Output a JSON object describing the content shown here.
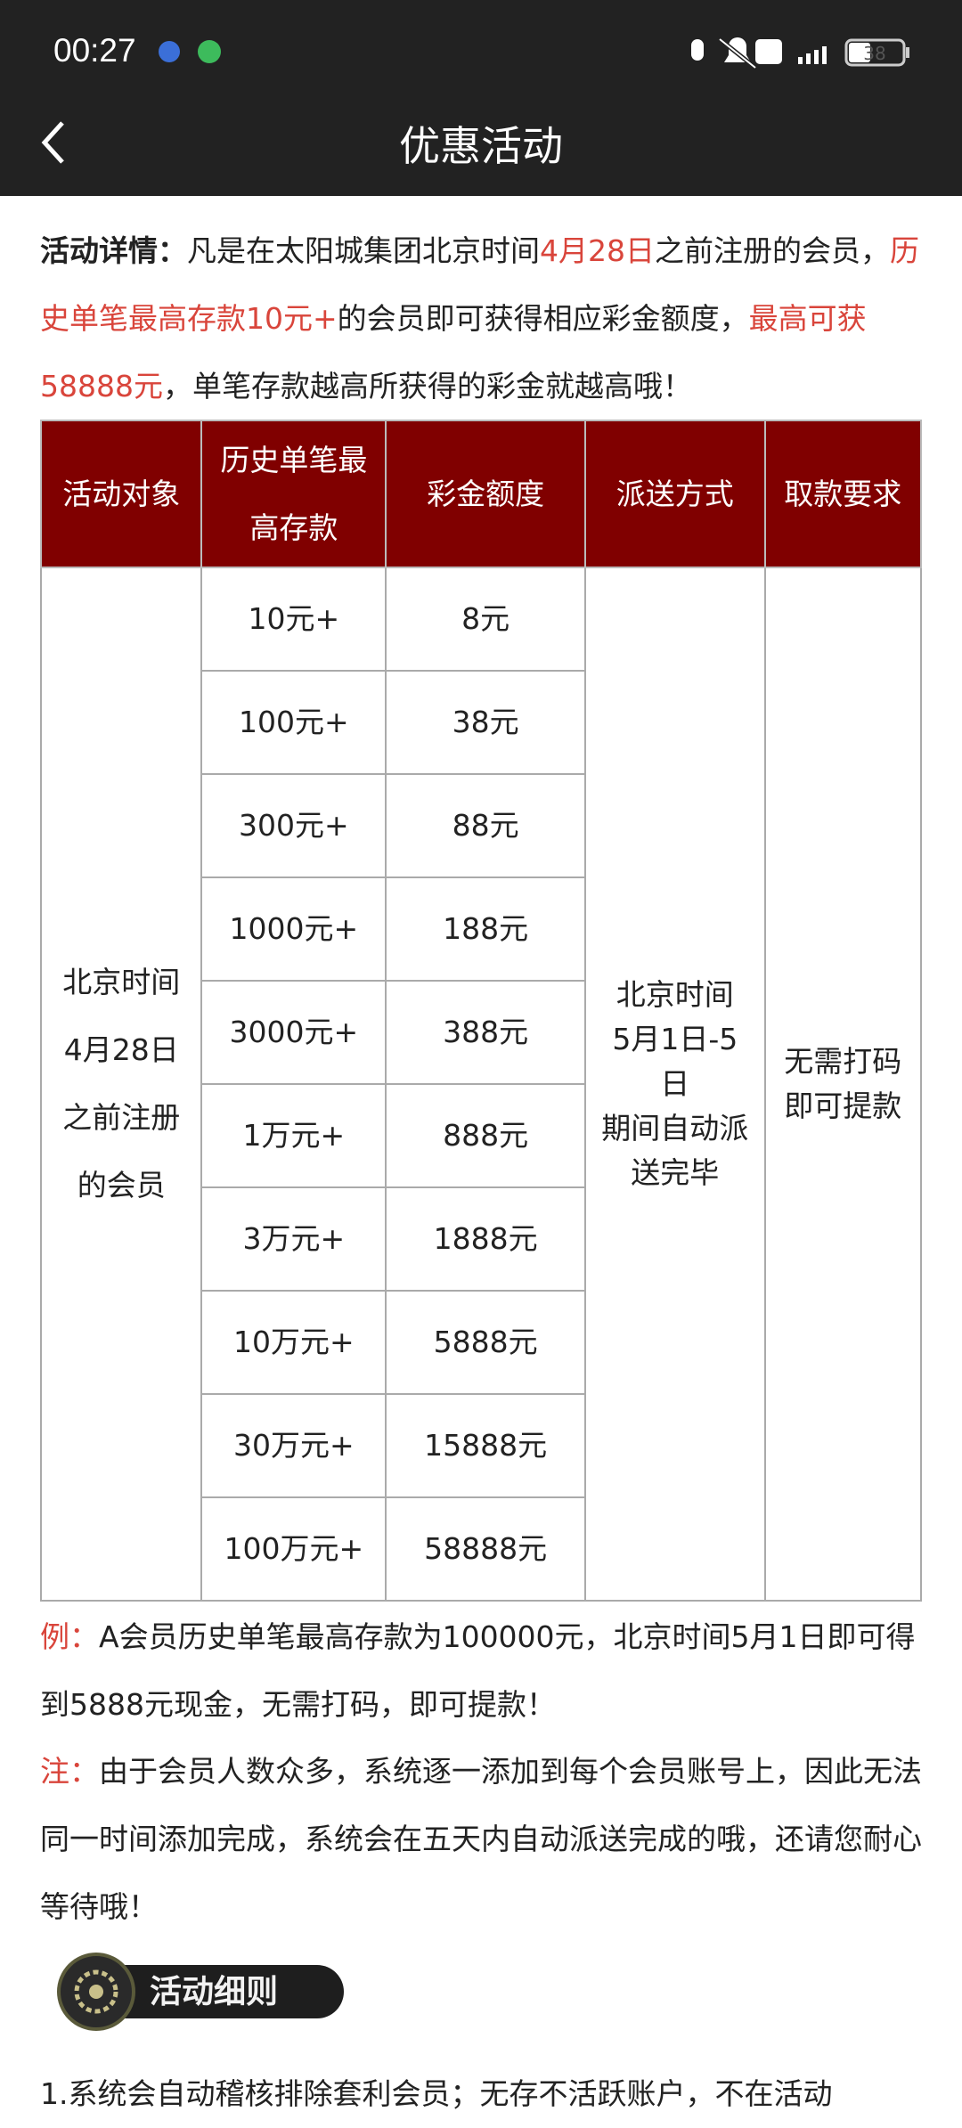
{
  "status_bar": {
    "time": "00:27",
    "battery": "38"
  },
  "header": {
    "title": "优惠活动"
  },
  "intro": [
    {
      "text": "活动详情：",
      "bold": true
    },
    {
      "text": "凡是在太阳城集团北京时间"
    },
    {
      "text": "4月28日",
      "color": "#d9453b"
    },
    {
      "text": "之前注册的会员，"
    },
    {
      "text": "历史单笔最高存款10元+",
      "color": "#d9453b"
    },
    {
      "text": "的会员即可获得相应彩金额度，"
    },
    {
      "text": "最高可获58888元",
      "color": "#d9453b"
    },
    {
      "text": "，单笔存款越高所获得的彩金就越高哦！"
    }
  ],
  "table": {
    "headers": [
      [
        "活动对象"
      ],
      [
        "历史单笔最",
        "高存款"
      ],
      [
        "彩金额度"
      ],
      [
        "派送方式"
      ],
      [
        "取款要求"
      ]
    ],
    "target": [
      "北京时间",
      "4月28日",
      "之前注册",
      "的会员"
    ],
    "rows": [
      [
        "10元+",
        "8元"
      ],
      [
        "100元+",
        "38元"
      ],
      [
        "300元+",
        "88元"
      ],
      [
        "1000元+",
        "188元"
      ],
      [
        "3000元+",
        "388元"
      ],
      [
        "1万元+",
        "888元"
      ],
      [
        "3万元+",
        "1888元"
      ],
      [
        "10万元+",
        "5888元"
      ],
      [
        "30万元+",
        "15888元"
      ],
      [
        "100万元+",
        "58888元"
      ]
    ],
    "delivery": [
      "北京时间",
      "5月1日-5",
      "日",
      "期间自动派",
      "送完毕"
    ],
    "withdrawal": [
      "无需打码",
      "即可提款"
    ]
  },
  "example": [
    {
      "text": "例：",
      "color": "#d9453b"
    },
    {
      "text": "A会员历史单笔最高存款为100000元，北京时间5月1日即可得到5888元现金，无需打码，即可提款！"
    }
  ],
  "note": [
    {
      "text": "注：",
      "color": "#d9453b"
    },
    {
      "text": "由于会员人数众多，系统逐一添加到每个会员账号上，因此无法同一时间添加完成，系统会在五天内自动派送完成的哦，还请您耐心等待哦！"
    }
  ],
  "badge": "活动细则",
  "rules": [
    "1.系统会自动稽核排除套利会员；无存不活跃账户，不在活动"
  ]
}
